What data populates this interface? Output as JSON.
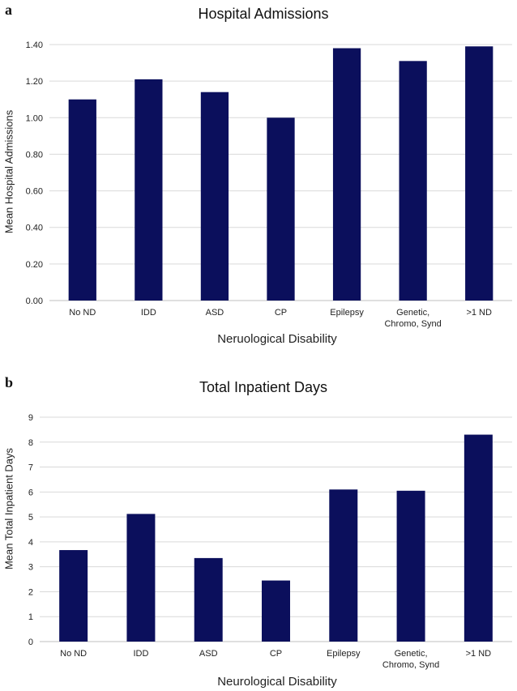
{
  "chart_data": [
    {
      "panel_label": "a",
      "type": "bar",
      "title": "Hospital Admissions",
      "xlabel": "Neruological Disability",
      "ylabel": "Mean Hospital Admissions",
      "categories": [
        [
          "No ND"
        ],
        [
          "IDD"
        ],
        [
          "ASD"
        ],
        [
          "CP"
        ],
        [
          "Epilepsy"
        ],
        [
          "Genetic,",
          "Chromo, Synd"
        ],
        [
          ">1 ND"
        ]
      ],
      "values": [
        1.1,
        1.21,
        1.14,
        1.0,
        1.38,
        1.31,
        1.39
      ],
      "ylim": [
        0,
        1.4
      ],
      "yticks": [
        "0.00",
        "0.20",
        "0.40",
        "0.60",
        "0.80",
        "1.00",
        "1.20",
        "1.40"
      ],
      "grid": true,
      "bar_color": "#0b0f5c"
    },
    {
      "panel_label": "b",
      "type": "bar",
      "title": "Total Inpatient Days",
      "xlabel": "Neurological Disability",
      "ylabel": "Mean Total Inpatient Days",
      "categories": [
        [
          "No ND"
        ],
        [
          "IDD"
        ],
        [
          "ASD"
        ],
        [
          "CP"
        ],
        [
          "Epilepsy"
        ],
        [
          "Genetic,",
          "Chromo, Synd"
        ],
        [
          ">1 ND"
        ]
      ],
      "values": [
        3.67,
        5.12,
        3.35,
        2.45,
        6.1,
        6.05,
        8.3
      ],
      "ylim": [
        0,
        9
      ],
      "yticks": [
        "0",
        "1",
        "2",
        "3",
        "4",
        "5",
        "6",
        "7",
        "8",
        "9"
      ],
      "grid": true,
      "bar_color": "#0b0f5c"
    }
  ]
}
